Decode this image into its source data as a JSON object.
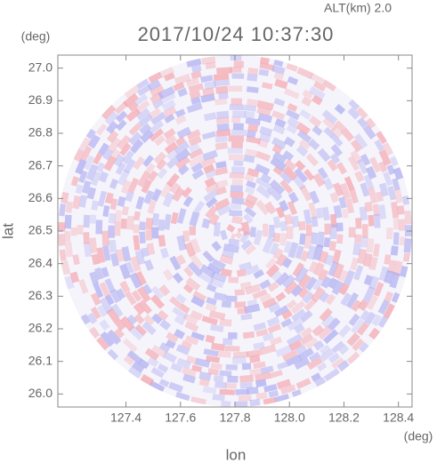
{
  "chart_data": {
    "type": "image",
    "title": "2017/10/24 10:37:30",
    "subtitle": "ALT(km) 2.0",
    "x_label": "lon",
    "x_unit": "(deg)",
    "y_label": "lat",
    "y_unit": "(deg)",
    "xlim": [
      127.15,
      128.45
    ],
    "ylim": [
      25.96,
      27.04
    ],
    "xticks": [
      127.4,
      127.6,
      127.8,
      {
        "value": 128.0,
        "label": "128.0"
      },
      128.2,
      128.4
    ],
    "yticks": [
      {
        "value": 26.0,
        "label": "26.0"
      },
      26.1,
      26.2,
      26.3,
      26.4,
      26.5,
      26.6,
      26.7,
      26.8,
      26.9,
      {
        "value": 27.0,
        "label": "27.0"
      }
    ]
  }
}
